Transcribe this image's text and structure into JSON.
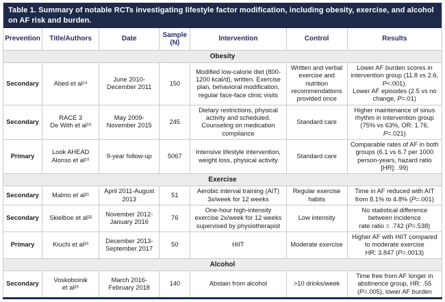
{
  "title": "Table 1. Summary of notable RCTs investigating lifestyle factor modification, including obesity, exercise, and alcohol on AF risk and burden.",
  "columns": [
    "Prevention",
    "Title/Authors",
    "Date",
    "Sample (N)",
    "Intervention",
    "Control",
    "Results"
  ],
  "colors": {
    "header_bg": "#1f2a4a",
    "header_text": "#ffffff",
    "column_header_text": "#272c66",
    "section_bg": "#ececec",
    "cell_border": "#c9c9c9",
    "bottom_border": "#1f2a4a"
  },
  "sections": [
    {
      "name": "Obesity",
      "rows": [
        {
          "prevention": "Secondary",
          "title_authors": "Abed et al¹⁴",
          "date": "June 2010-December 2011",
          "sample": "150",
          "intervention": "Modified low-calorie diet (800-1200 kcal/d), written. Exercise plan, behavioral modification, regular face-face clinic visits",
          "control": "Written and verbal exercise and nutrition recommendations provided once",
          "results": "Lower AF burden scores in intervention group (11.8 vs 2.6, P<.001).\nLower AF episodes (2.5 vs no change, P=.01)"
        },
        {
          "prevention": "Secondary",
          "title_authors": "RACE 3\nDe With et al¹³",
          "date": "May 2009-November 2015",
          "sample": "245",
          "intervention": "Dietary restrictions, physical activity and scheduled. Counseling on medication compliance",
          "control": "Standard care",
          "results": "Higher maintenance of sinus rhythm in intervention group (75% vs 63%, OR: 1.76, P=.021)"
        },
        {
          "prevention": "Primary",
          "title_authors": "Look AHEAD\nAlonso et al¹⁵",
          "date": "9-year follow-up",
          "sample": "5067",
          "intervention": "Intensive lifestyle intervention, weight loss, physical activity",
          "control": "Standard care",
          "results": "Comparable rates of AF in both groups (6.1 vs 6.7 per 1000 person-years, hazard ratio [HR]: .99)"
        }
      ]
    },
    {
      "name": "Exercise",
      "rows": [
        {
          "prevention": "Secondary",
          "title_authors": "Malmo et al²¹",
          "date": "April 2011-August 2013",
          "sample": "51",
          "intervention": "Aerobic interval training (AIT) 3x/week for 12 weeks",
          "control": "Regular exercise habits",
          "results": "Time in AF reduced with AIT from 8.1% to 4.8% (P=.001)"
        },
        {
          "prevention": "Secondary",
          "title_authors": "Skielboe et al²²",
          "date": "November 2012-January 2016",
          "sample": "76",
          "intervention": "One-hour high-intensity exercise 2x/week for 12 weeks supervised by physiotherapist",
          "control": "Low intensity",
          "results": "No statistical difference between incidence\nrate ratio = .742 (P=.538)"
        },
        {
          "prevention": "Primary",
          "title_authors": "Kiuchi et al²³",
          "date": "December 2013-September 2017",
          "sample": "50",
          "intervention": "HIIT",
          "control": "Moderate exercise",
          "results": "Higher AF with HIIT compared to moderate exercise\nHR: 3.847 (P=.0013)"
        }
      ]
    },
    {
      "name": "Alcohol",
      "rows": [
        {
          "prevention": "Secondary",
          "title_authors": "Voskoboinik\net al²⁵",
          "date": "March 2016-February 2018",
          "sample": "140",
          "intervention": "Abstain from alcohol",
          "control": ">10 drinks/week",
          "results": "Time free from AF longer in abstinence group, HR: .55 (P=.005), lower AF burden"
        }
      ]
    }
  ]
}
